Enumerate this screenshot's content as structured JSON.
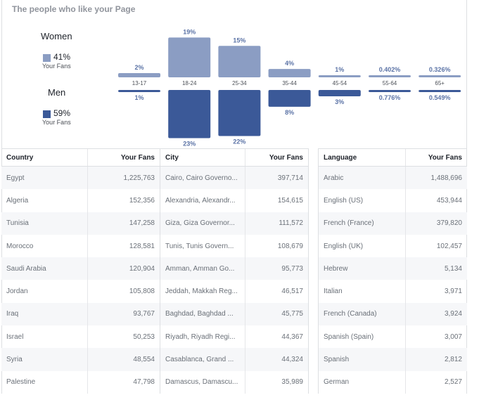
{
  "page": {
    "title": "The people who like your Page"
  },
  "colors": {
    "women": "#8b9dc3",
    "men": "#3b5998",
    "label": "#5b73a6",
    "age_text": "#4b4f56"
  },
  "legend": {
    "women": {
      "heading": "Women",
      "pct": "41%",
      "sub": "Your Fans"
    },
    "men": {
      "heading": "Men",
      "pct": "59%",
      "sub": "Your Fans"
    }
  },
  "chart_data": {
    "type": "bar",
    "categories": [
      "13-17",
      "18-24",
      "25-34",
      "35-44",
      "45-54",
      "55-64",
      "65+"
    ],
    "series": [
      {
        "name": "Women",
        "values": [
          2,
          19,
          15,
          4,
          1,
          0.402,
          0.326
        ],
        "labels": [
          "2%",
          "19%",
          "15%",
          "4%",
          "1%",
          "0.402%",
          "0.326%"
        ]
      },
      {
        "name": "Men",
        "values": [
          1,
          23,
          22,
          8,
          3,
          0.776,
          0.549
        ],
        "labels": [
          "1%",
          "23%",
          "22%",
          "8%",
          "3%",
          "0.776%",
          "0.549%"
        ]
      }
    ]
  },
  "countries": {
    "header": {
      "name": "Country",
      "fans": "Your Fans"
    },
    "rows": [
      {
        "name": "Egypt",
        "fans": "1,225,763"
      },
      {
        "name": "Algeria",
        "fans": "152,356"
      },
      {
        "name": "Tunisia",
        "fans": "147,258"
      },
      {
        "name": "Morocco",
        "fans": "128,581"
      },
      {
        "name": "Saudi Arabia",
        "fans": "120,904"
      },
      {
        "name": "Jordan",
        "fans": "105,808"
      },
      {
        "name": "Iraq",
        "fans": "93,767"
      },
      {
        "name": "Israel",
        "fans": "50,253"
      },
      {
        "name": "Syria",
        "fans": "48,554"
      },
      {
        "name": "Palestine",
        "fans": "47,798"
      }
    ]
  },
  "cities": {
    "header": {
      "name": "City",
      "fans": "Your Fans"
    },
    "rows": [
      {
        "name": "Cairo, Cairo Governo...",
        "fans": "397,714"
      },
      {
        "name": "Alexandria, Alexandr...",
        "fans": "154,615"
      },
      {
        "name": "Giza, Giza Governor...",
        "fans": "111,572"
      },
      {
        "name": "Tunis, Tunis Govern...",
        "fans": "108,679"
      },
      {
        "name": "Amman, Amman Go...",
        "fans": "95,773"
      },
      {
        "name": "Jeddah, Makkah Reg...",
        "fans": "46,517"
      },
      {
        "name": "Baghdad, Baghdad ...",
        "fans": "45,775"
      },
      {
        "name": "Riyadh, Riyadh Regi...",
        "fans": "44,367"
      },
      {
        "name": "Casablanca, Grand ...",
        "fans": "44,324"
      },
      {
        "name": "Damascus, Damascu...",
        "fans": "35,989"
      }
    ]
  },
  "languages": {
    "header": {
      "name": "Language",
      "fans": "Your Fans"
    },
    "rows": [
      {
        "name": "Arabic",
        "fans": "1,488,696"
      },
      {
        "name": "English (US)",
        "fans": "453,944"
      },
      {
        "name": "French (France)",
        "fans": "379,820"
      },
      {
        "name": "English (UK)",
        "fans": "102,457"
      },
      {
        "name": "Hebrew",
        "fans": "5,134"
      },
      {
        "name": "Italian",
        "fans": "3,971"
      },
      {
        "name": "French (Canada)",
        "fans": "3,924"
      },
      {
        "name": "Spanish (Spain)",
        "fans": "3,007"
      },
      {
        "name": "Spanish",
        "fans": "2,812"
      },
      {
        "name": "German",
        "fans": "2,527"
      }
    ]
  }
}
